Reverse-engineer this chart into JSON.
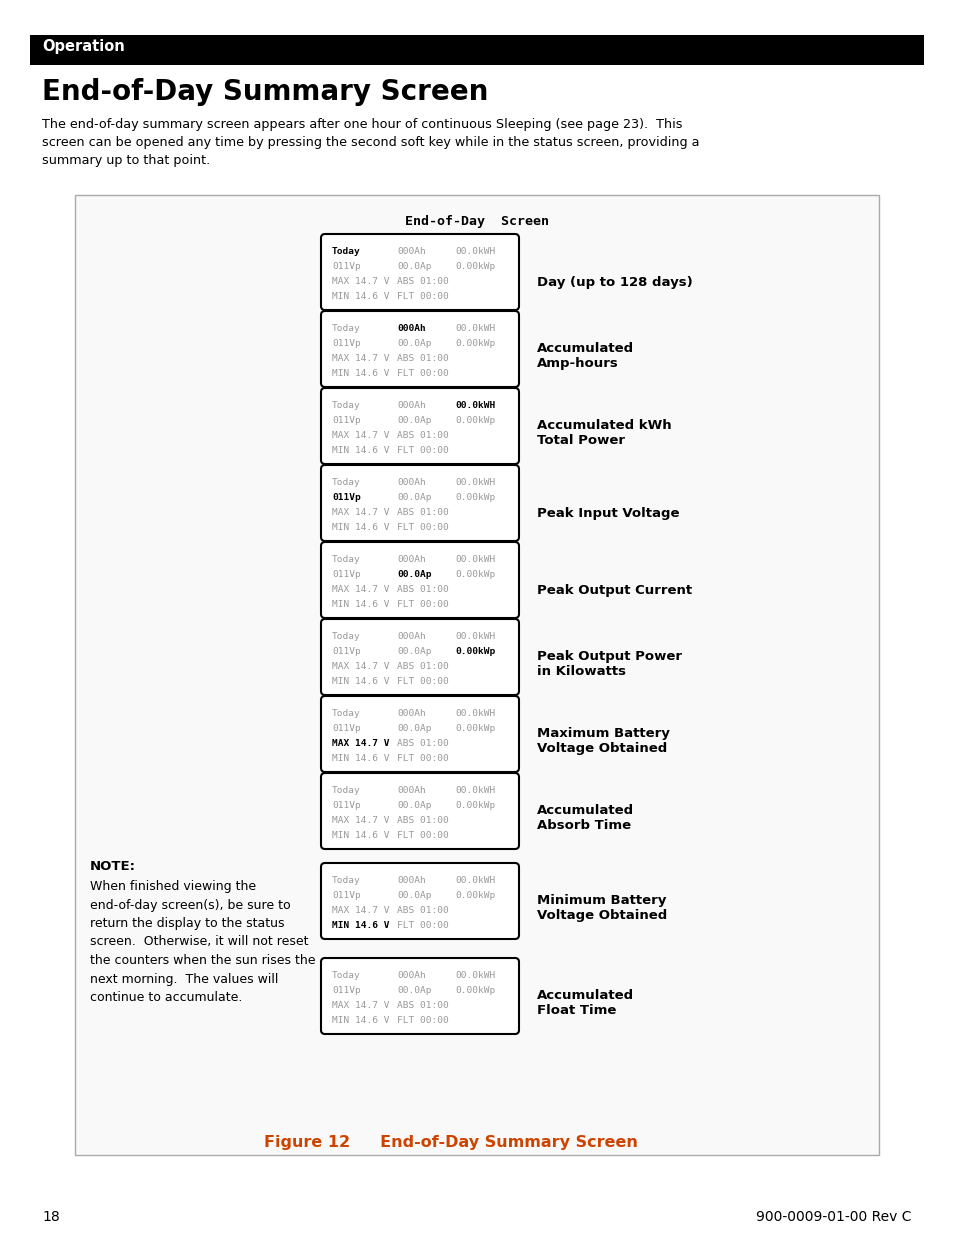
{
  "page_title": "Operation",
  "section_title": "End-of-Day Summary Screen",
  "intro_text": "The end-of-day summary screen appears after one hour of continuous Sleeping (see page 23).  This\nscreen can be opened any time by pressing the second soft key while in the status screen, providing a\nsummary up to that point.",
  "diagram_title": "End-of-Day  Screen",
  "screens": [
    {
      "bold_line": 0,
      "bold_col": "left",
      "label_line1": "Day (up to 128 days)",
      "label_line2": ""
    },
    {
      "bold_line": 0,
      "bold_col": "mid",
      "label_line1": "Accumulated",
      "label_line2": "Amp-hours"
    },
    {
      "bold_line": 0,
      "bold_col": "right",
      "label_line1": "Accumulated kWh",
      "label_line2": "Total Power"
    },
    {
      "bold_line": 1,
      "bold_col": "left",
      "label_line1": "Peak Input Voltage",
      "label_line2": ""
    },
    {
      "bold_line": 1,
      "bold_col": "mid",
      "label_line1": "Peak Output Current",
      "label_line2": ""
    },
    {
      "bold_line": 1,
      "bold_col": "right",
      "label_line1": "Peak Output Power",
      "label_line2": "in Kilowatts"
    },
    {
      "bold_line": 2,
      "bold_col": "left",
      "label_line1": "Maximum Battery",
      "label_line2": "Voltage Obtained"
    },
    {
      "bold_line": 2,
      "bold_col": "right",
      "label_line1": "Accumulated",
      "label_line2": "Absorb Time"
    },
    {
      "bold_line": 3,
      "bold_col": "left",
      "label_line1": "Minimum Battery",
      "label_line2": "Voltage Obtained"
    },
    {
      "bold_line": 3,
      "bold_col": "right",
      "label_line1": "Accumulated",
      "label_line2": "Float Time"
    }
  ],
  "note_title": "NOTE:",
  "note_text": "When finished viewing the\nend-of-day screen(s), be sure to\nreturn the display to the status\nscreen.  Otherwise, it will not reset\nthe counters when the sun rises the\nnext morning.  The values will\ncontinue to accumulate.",
  "figure_label": "Figure 12",
  "figure_caption_rest": "     End-of-Day Summary Screen",
  "page_number": "18",
  "doc_number": "900-0009-01-00 Rev C",
  "bg_color": "#ffffff",
  "header_bg": "#000000",
  "header_text_color": "#ffffff",
  "box_border_color": "#000000",
  "screen_bg": "#ffffff",
  "gray_text_color": "#999999",
  "black_text_color": "#000000",
  "caption_color": "#cc4400"
}
